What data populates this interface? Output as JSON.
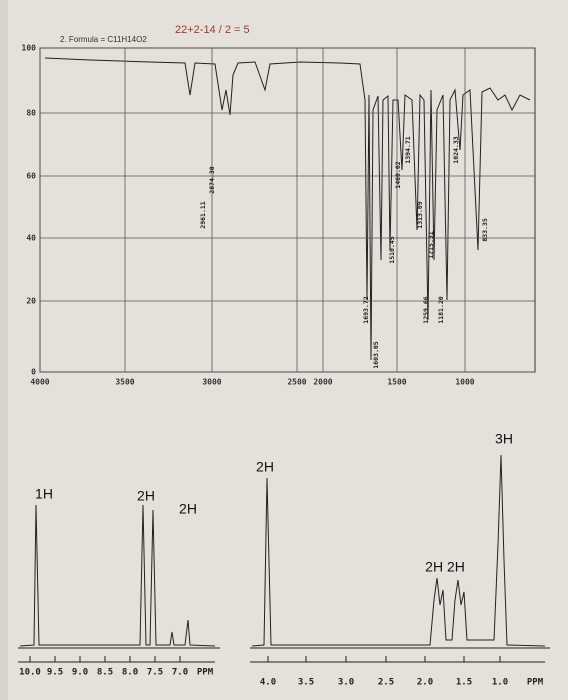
{
  "header": {
    "formula": "2.  Formula = C11H14O2",
    "note": "22+2-14 / 2 = 5"
  },
  "ir": {
    "xticks": [
      "4000",
      "3500",
      "3000",
      "2500",
      "2000",
      "1500",
      "1000"
    ],
    "yticks": [
      "100",
      "80",
      "60",
      "40",
      "20",
      "0"
    ],
    "peaks": [
      "2961.11",
      "2874.30",
      "1693.72",
      "1603.05",
      "1510.45",
      "1460.02",
      "1394.71",
      "1313.09",
      "1259.66",
      "1215.31",
      "1181.20",
      "1024.33",
      "833.35"
    ]
  },
  "nmr": {
    "integrations": [
      "1H",
      "2H",
      "2H",
      "2H",
      "2H 2H",
      "3H"
    ],
    "left_axis": [
      "10.0",
      "9.5",
      "9.0",
      "8.5",
      "8.0",
      "7.5",
      "7.0",
      "PPM"
    ],
    "right_axis": [
      "4.0",
      "3.5",
      "3.0",
      "2.5",
      "2.0",
      "1.5",
      "1.0",
      "PPM"
    ]
  }
}
